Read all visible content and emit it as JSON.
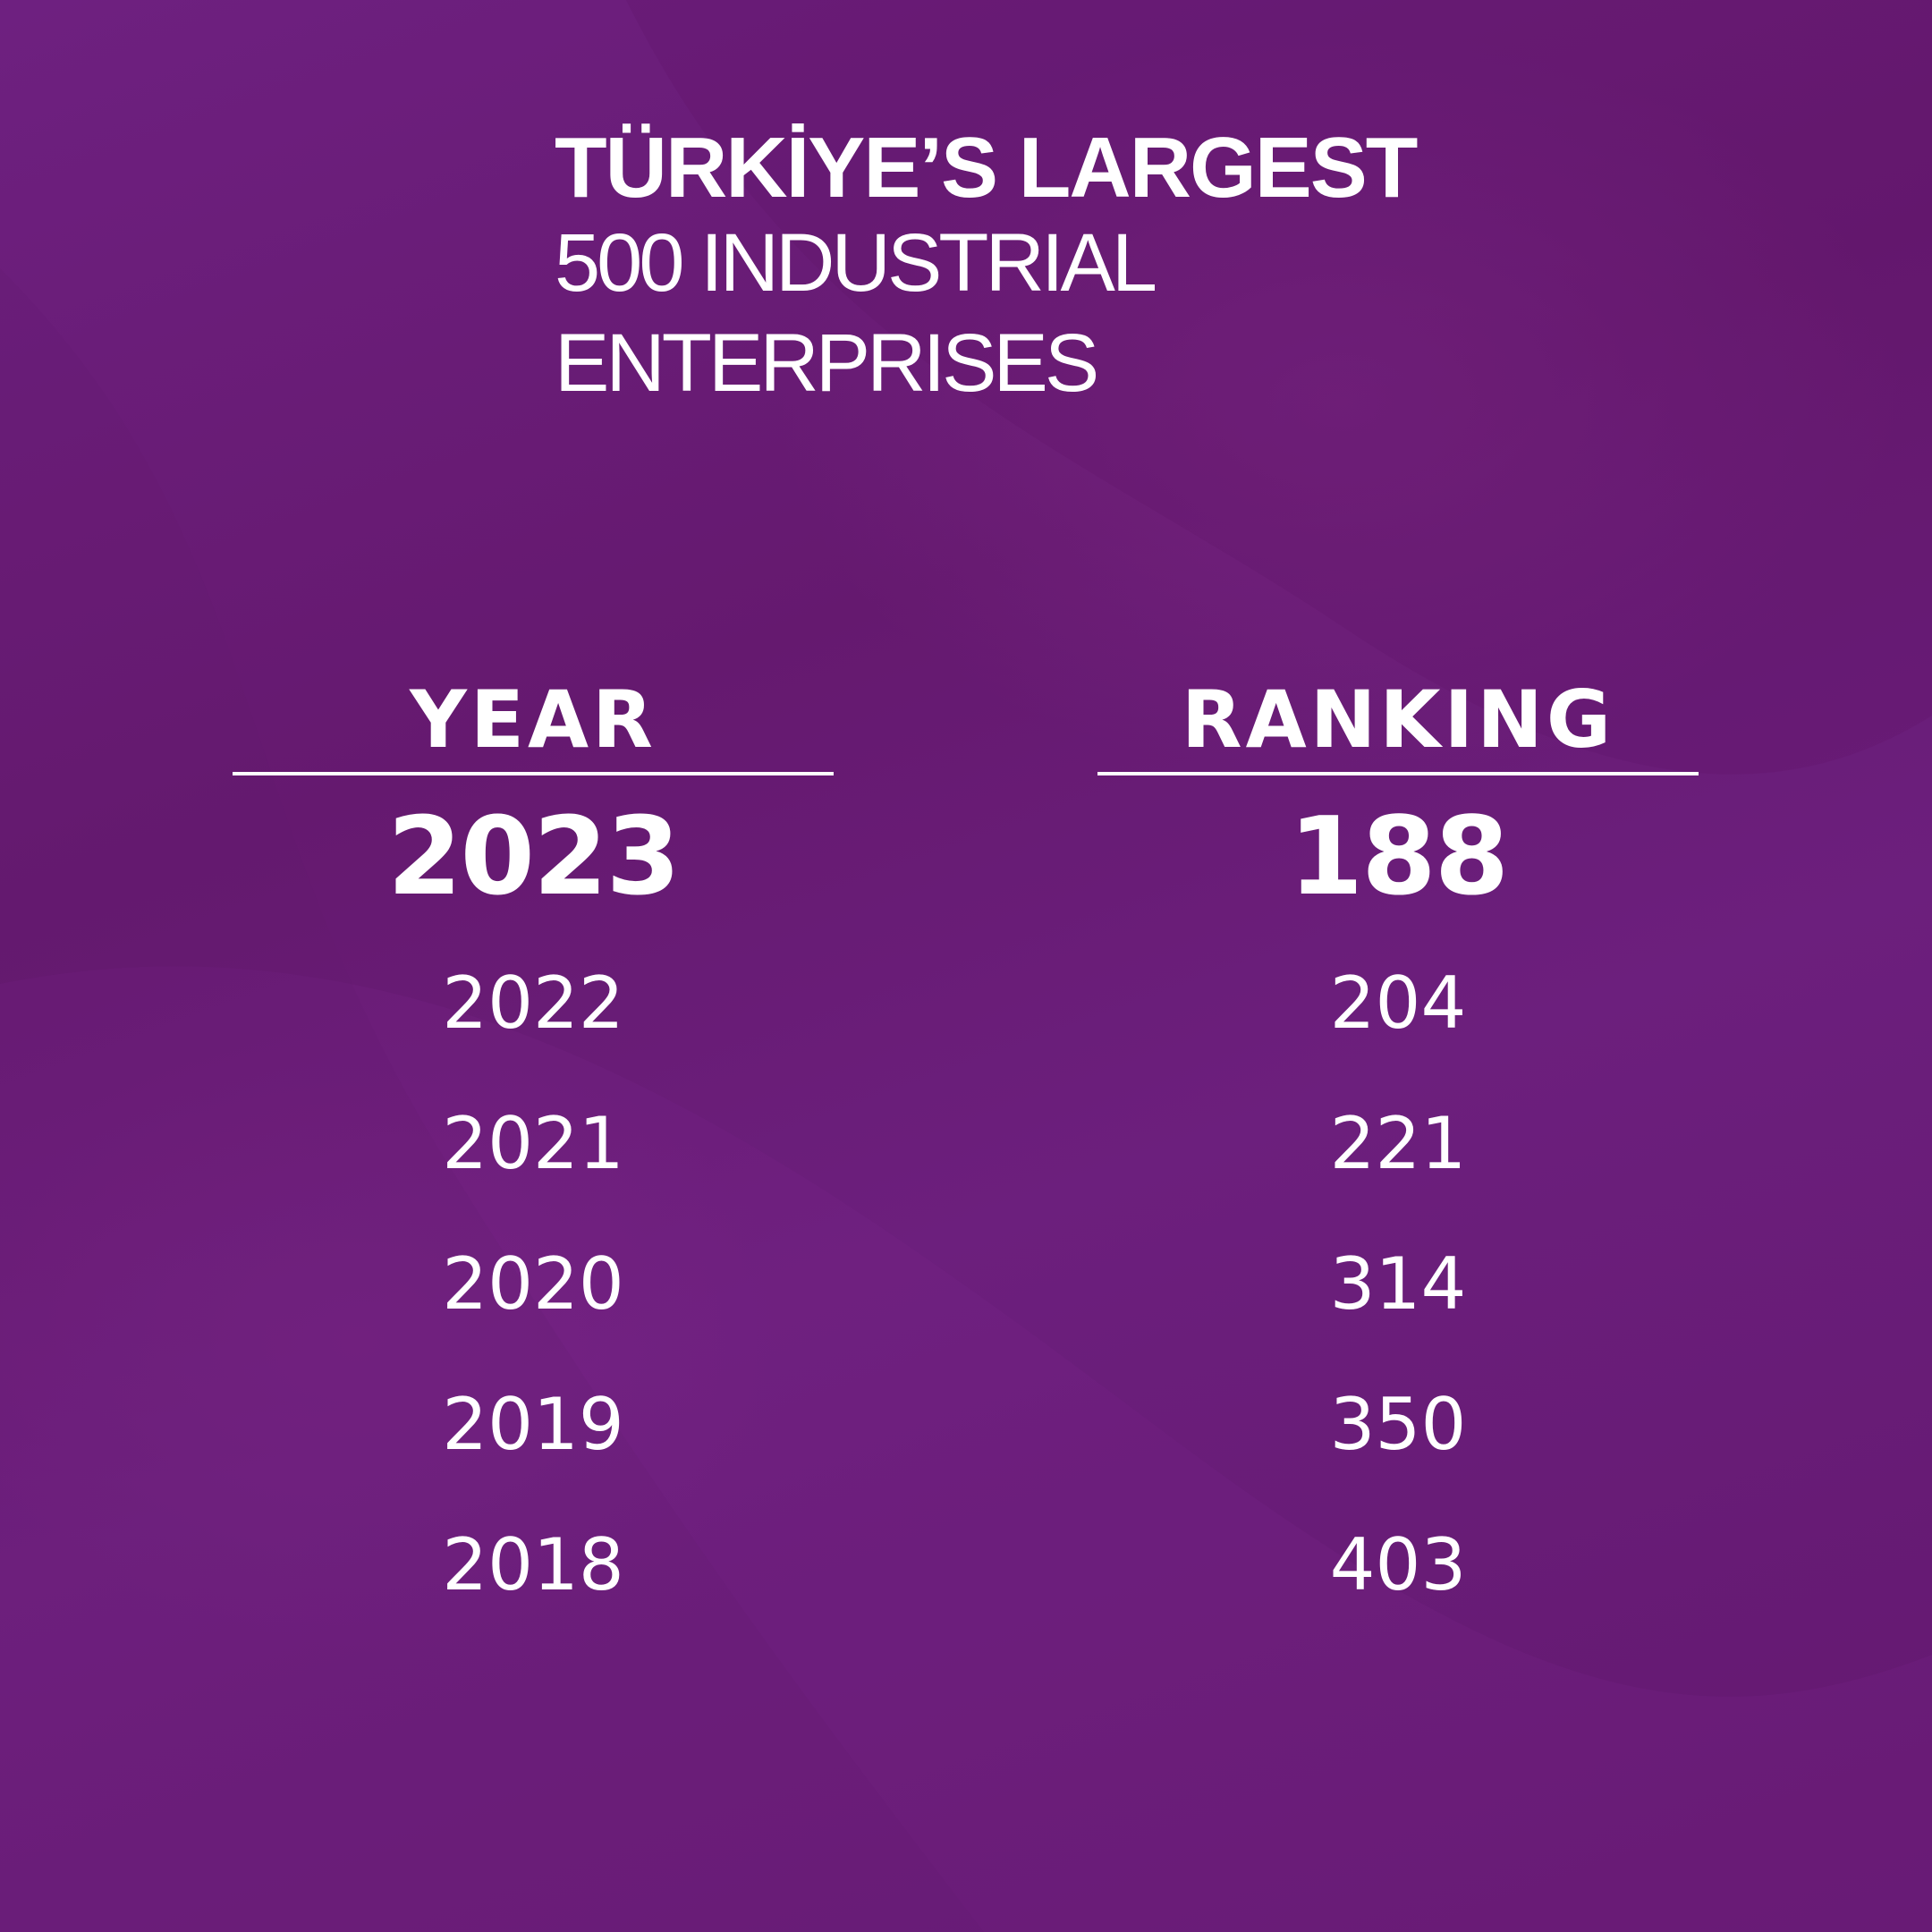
{
  "background_color": "#6b1e7c",
  "title": {
    "line1": "TÜRKİYE’S LARGEST",
    "line2": "500 INDUSTRIAL",
    "line3": "ENTERPRISES"
  },
  "table": {
    "headers": {
      "year": "YEAR",
      "ranking": "RANKING"
    },
    "rows": [
      {
        "year": "2023",
        "ranking": "188"
      },
      {
        "year": "2022",
        "ranking": "204"
      },
      {
        "year": "2021",
        "ranking": "221"
      },
      {
        "year": "2020",
        "ranking": "314"
      },
      {
        "year": "2019",
        "ranking": "350"
      },
      {
        "year": "2018",
        "ranking": "403"
      }
    ]
  }
}
